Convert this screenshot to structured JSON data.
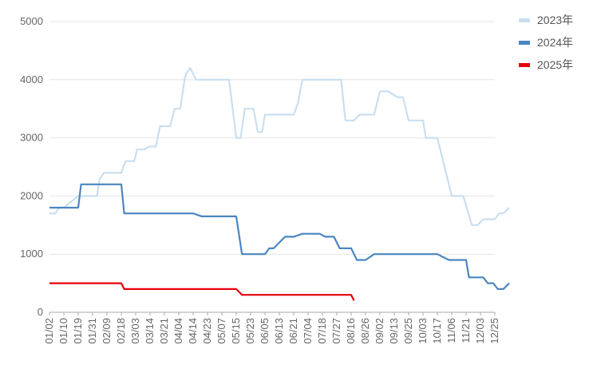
{
  "chart_data": {
    "type": "line",
    "ylim": [
      0,
      5000
    ],
    "y_ticks": [
      "0",
      "1000",
      "2000",
      "3000",
      "4000",
      "5000"
    ],
    "grid": true,
    "legend_position": "top-right",
    "categories": [
      "01/02",
      "01/10",
      "01/19",
      "01/31",
      "02/09",
      "02/18",
      "03/03",
      "03/14",
      "03/21",
      "04/04",
      "04/14",
      "04/23",
      "05/07",
      "05/15",
      "05/23",
      "06/05",
      "06/13",
      "06/21",
      "07/04",
      "07/18",
      "07/27",
      "08/16",
      "08/26",
      "09/02",
      "09/13",
      "09/25",
      "10/03",
      "10/17",
      "11/06",
      "11/21",
      "12/03",
      "12/25"
    ],
    "series": [
      {
        "name": "2023年",
        "color": "#c9dff0",
        "x": [
          0,
          0.4,
          0.7,
          1.0,
          2.0,
          3.3,
          3.5,
          3.8,
          4.5,
          5.0,
          5.3,
          5.9,
          6.1,
          6.6,
          6.9,
          7.4,
          7.7,
          8.4,
          8.7,
          9.1,
          9.4,
          9.5,
          9.8,
          10.2,
          10.6,
          11.0,
          11.4,
          12.0,
          12.2,
          12.5,
          13.0,
          13.3,
          13.6,
          14.2,
          14.5,
          14.8,
          15.0,
          15.4,
          15.8,
          17.0,
          17.3,
          17.6,
          20.0,
          20.3,
          20.6,
          21.2,
          21.6,
          22.0,
          22.6,
          23.0,
          23.3,
          23.6,
          24.2,
          24.6,
          25.0,
          25.4,
          26.0,
          26.2,
          26.6,
          27.0,
          28.0,
          28.3,
          28.8,
          29.4,
          29.8,
          30.2,
          31.0,
          31.3,
          31.6,
          32.0
        ],
        "values": [
          1700,
          1700,
          1800,
          1800,
          2000,
          2000,
          2300,
          2400,
          2400,
          2400,
          2600,
          2600,
          2800,
          2800,
          2850,
          2850,
          3200,
          3200,
          3500,
          3500,
          4000,
          4100,
          4200,
          4000,
          4000,
          4000,
          4000,
          4000,
          4000,
          4000,
          3000,
          3000,
          3500,
          3500,
          3100,
          3100,
          3400,
          3400,
          3400,
          3400,
          3600,
          4000,
          4000,
          4000,
          3300,
          3300,
          3400,
          3400,
          3400,
          3800,
          3800,
          3800,
          3700,
          3700,
          3300,
          3300,
          3300,
          3000,
          3000,
          3000,
          2000,
          2000,
          2000,
          1500,
          1500,
          1600,
          1600,
          1700,
          1700,
          1800
        ]
      },
      {
        "name": "2024年",
        "color": "#4a86c0",
        "x": [
          0,
          1.0,
          2.0,
          2.2,
          2.6,
          5.0,
          5.2,
          5.6,
          10.0,
          10.6,
          11.0,
          13.0,
          13.4,
          14.0,
          14.6,
          15.0,
          15.3,
          15.6,
          16.4,
          16.8,
          17.0,
          17.6,
          18.2,
          18.4,
          18.8,
          19.2,
          19.4,
          19.8,
          20.2,
          20.6,
          21.0,
          21.4,
          22.0,
          22.6,
          23.2,
          24.0,
          26.0,
          27.0,
          27.8,
          28.2,
          28.6,
          29.0,
          29.2,
          29.6,
          30.2,
          30.5,
          30.9,
          31.2,
          31.6,
          32.0
        ],
        "values": [
          1800,
          1800,
          1800,
          2200,
          2200,
          2200,
          1700,
          1700,
          1700,
          1650,
          1650,
          1650,
          1000,
          1000,
          1000,
          1000,
          1100,
          1100,
          1300,
          1300,
          1300,
          1350,
          1350,
          1350,
          1350,
          1300,
          1300,
          1300,
          1100,
          1100,
          1100,
          900,
          900,
          1000,
          1000,
          1000,
          1000,
          1000,
          900,
          900,
          900,
          900,
          600,
          600,
          600,
          500,
          500,
          400,
          400,
          500
        ]
      },
      {
        "name": "2025年",
        "color": "#e8000b",
        "x": [
          0,
          1.0,
          2.0,
          3.0,
          4.0,
          5.0,
          5.2,
          5.6,
          7.0,
          9.0,
          11.0,
          12.0,
          13.0,
          13.4,
          14.0,
          15.0,
          16.0,
          17.0,
          18.0,
          19.0,
          20.0,
          21.0,
          21.2
        ],
        "values": [
          500,
          500,
          500,
          500,
          500,
          500,
          400,
          400,
          400,
          400,
          400,
          400,
          400,
          300,
          300,
          300,
          300,
          300,
          300,
          300,
          300,
          300,
          200
        ]
      }
    ]
  }
}
